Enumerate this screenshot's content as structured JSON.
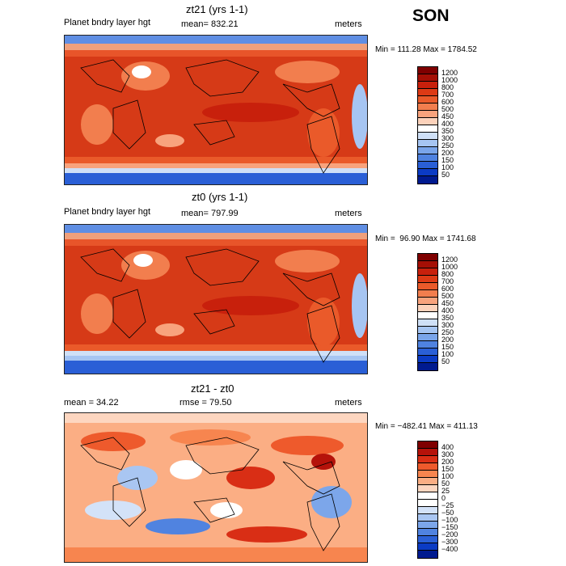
{
  "season": "SON",
  "panels": [
    {
      "title": "zt21 (yrs 1-1)",
      "left_label": "Planet bndry layer hgt",
      "center_label": "mean= 832.21",
      "right_label": "meters",
      "minmax": "Min = 111.28 Max = 1784.52",
      "colorbar_labels": [
        "1200",
        "1000",
        "800",
        "700",
        "600",
        "500",
        "450",
        "400",
        "350",
        "300",
        "250",
        "200",
        "150",
        "100",
        "50"
      ]
    },
    {
      "title": "zt0 (yrs 1-1)",
      "left_label": "Planet bndry layer hgt",
      "center_label": "mean= 797.99",
      "right_label": "meters",
      "minmax": "Min =  96.90 Max = 1741.68",
      "colorbar_labels": [
        "1200",
        "1000",
        "800",
        "700",
        "600",
        "500",
        "450",
        "400",
        "350",
        "300",
        "250",
        "200",
        "150",
        "100",
        "50"
      ]
    },
    {
      "title": "zt21 - zt0",
      "left_label": "mean =  34.22",
      "center_label": "rmse =  79.50",
      "right_label": "meters",
      "minmax": "Min = −482.41 Max = 411.13",
      "colorbar_labels": [
        "400",
        "300",
        "200",
        "150",
        "100",
        "50",
        "25",
        "0",
        "−25",
        "−50",
        "−100",
        "−150",
        "−200",
        "−300",
        "−400"
      ]
    }
  ],
  "colors": {
    "abs_scale": [
      "#7f0000",
      "#a50f05",
      "#c8200c",
      "#dd3a15",
      "#ea5a2a",
      "#f27e4e",
      "#f8a37d",
      "#fcd2bb",
      "#ffffff",
      "#cfe0f7",
      "#a6c5f2",
      "#7aa5ea",
      "#4f82e0",
      "#2a5fd6",
      "#0b3bc4",
      "#001a8f"
    ],
    "diff_scale": [
      "#7f0000",
      "#b5120a",
      "#d92e15",
      "#ee5a2c",
      "#f7854f",
      "#fbae84",
      "#fdd6c0",
      "#ffffff",
      "#ffffff",
      "#d3e2f8",
      "#a9c6f2",
      "#7ca6ea",
      "#5083e0",
      "#2b60d6",
      "#0b3bc4",
      "#001a8f"
    ],
    "ocean_warm": "#d8401b",
    "land_line": "#000000"
  }
}
